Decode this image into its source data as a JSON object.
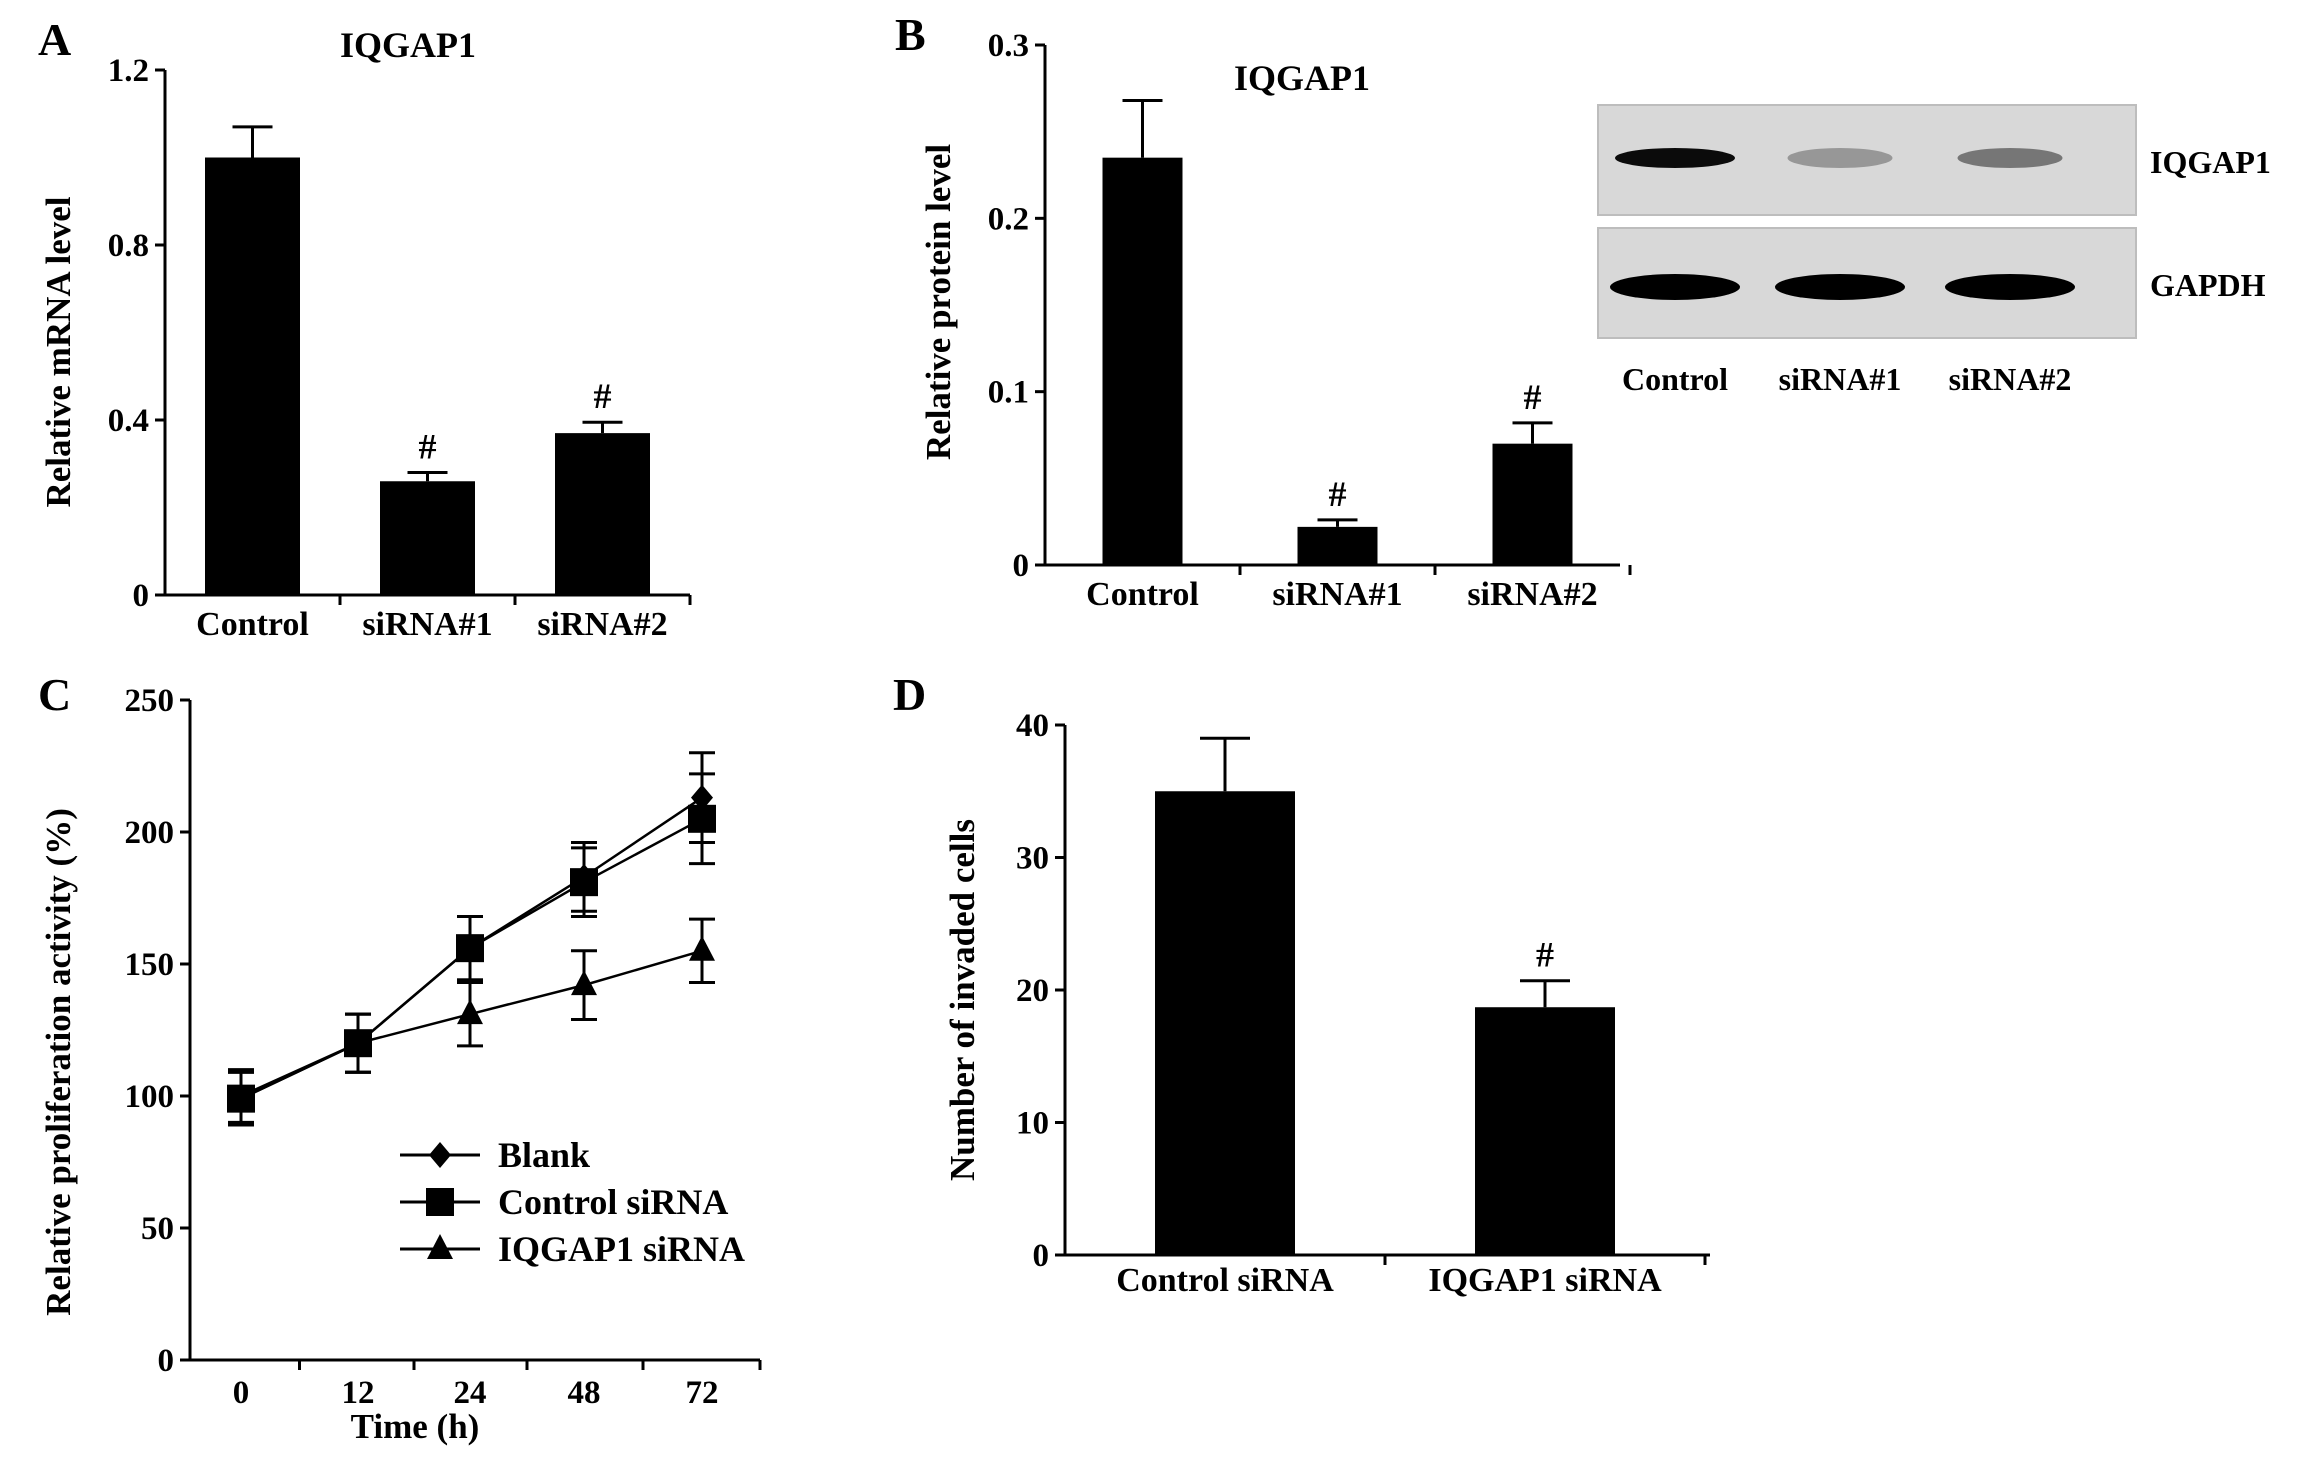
{
  "chart_data": [
    {
      "panel": "A",
      "type": "bar",
      "title": "IQGAP1",
      "ylabel": "Relative mRNA level",
      "xlabel": "",
      "ylim": [
        0,
        1.2
      ],
      "yticks": [
        "0",
        "0.4",
        "0.8",
        "1.2"
      ],
      "categories": [
        "Control",
        "siRNA#1",
        "siRNA#2"
      ],
      "values": [
        1.0,
        0.26,
        0.37
      ],
      "errors": [
        0.07,
        0.02,
        0.025
      ],
      "annotations": [
        "",
        "#",
        "#"
      ]
    },
    {
      "panel": "B",
      "type": "bar",
      "title": "IQGAP1",
      "ylabel": "Relative protein level",
      "xlabel": "",
      "ylim": [
        0,
        0.3
      ],
      "yticks": [
        "0",
        "0.1",
        "0.2",
        "0.3"
      ],
      "categories": [
        "Control",
        "siRNA#1",
        "siRNA#2"
      ],
      "values": [
        0.235,
        0.022,
        0.07
      ],
      "errors": [
        0.033,
        0.004,
        0.012
      ],
      "annotations": [
        "",
        "#",
        "#"
      ],
      "blot": {
        "rows": [
          "IQGAP1",
          "GAPDH"
        ],
        "lanes": [
          "Control",
          "siRNA#1",
          "siRNA#2"
        ],
        "intensity": [
          [
            0.95,
            0.3,
            0.45
          ],
          [
            1.0,
            1.0,
            1.0
          ]
        ]
      }
    },
    {
      "panel": "C",
      "type": "line",
      "title": "",
      "xlabel": "Time (h)",
      "ylabel": "Relative proliferation activity (%)",
      "ylim": [
        0,
        250
      ],
      "yticks": [
        "0",
        "50",
        "100",
        "150",
        "200",
        "250"
      ],
      "x": [
        "0",
        "12",
        "24",
        "48",
        "72"
      ],
      "legend_position": "bottom-center",
      "series": [
        {
          "name": "Blank",
          "marker": "diamond",
          "values": [
            100,
            120,
            156,
            183,
            213
          ],
          "errors": [
            10,
            11,
            12,
            13,
            17
          ]
        },
        {
          "name": "Control siRNA",
          "marker": "square",
          "values": [
            99,
            120,
            156,
            181,
            205
          ],
          "errors": [
            10,
            11,
            12,
            13,
            17
          ]
        },
        {
          "name": "IQGAP1 siRNA",
          "marker": "triangle",
          "values": [
            99,
            120,
            131,
            142,
            155
          ],
          "errors": [
            10,
            11,
            12,
            13,
            12
          ]
        }
      ]
    },
    {
      "panel": "D",
      "type": "bar",
      "title": "",
      "ylabel": "Number of invaded cells",
      "xlabel": "",
      "ylim": [
        0,
        40
      ],
      "yticks": [
        "0",
        "10",
        "20",
        "30",
        "40"
      ],
      "categories": [
        "Control siRNA",
        "IQGAP1 siRNA"
      ],
      "values": [
        35,
        18.7
      ],
      "errors": [
        4,
        2
      ],
      "annotations": [
        "",
        "#"
      ]
    }
  ]
}
